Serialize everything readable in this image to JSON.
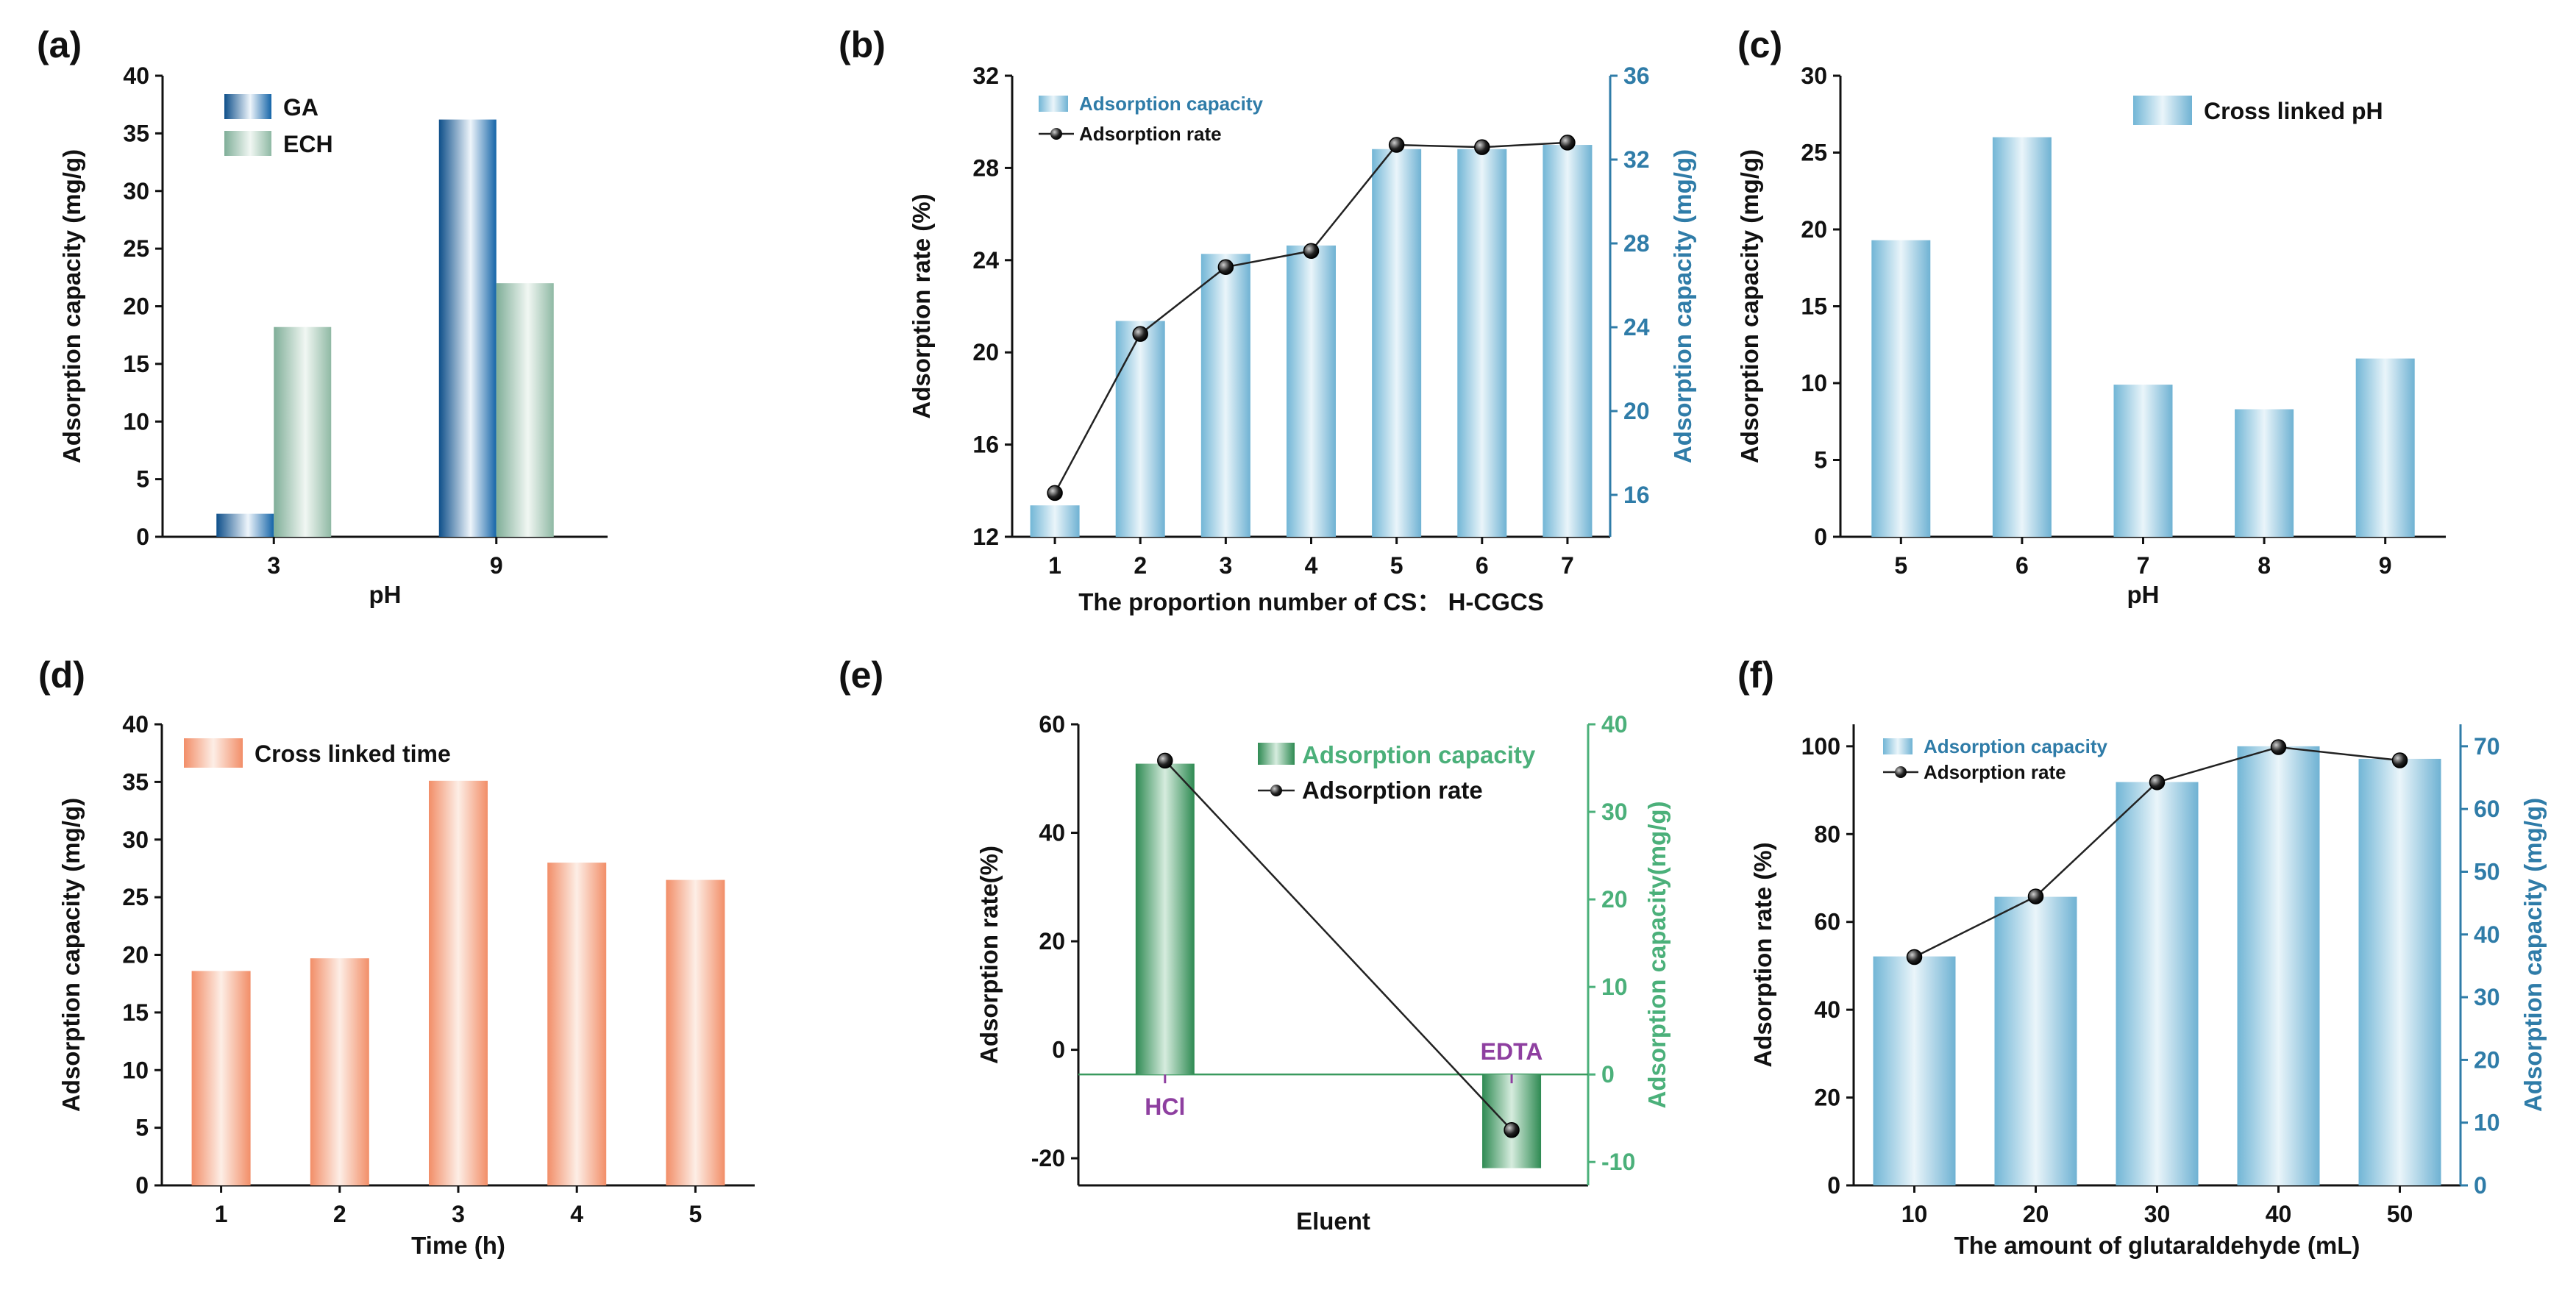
{
  "colors": {
    "ga_blue": "#1565a8",
    "ech_green": "#8fb9a4",
    "light_blue": "#7ec0dc",
    "orange": "#f49a78",
    "dark_green": "#3a9a5e",
    "purple": "#8e3fa0",
    "blue_label": "#2f7ca8",
    "green_label": "#4bb07a",
    "axis": "#111111"
  },
  "chart_data": [
    {
      "id": "a",
      "panel_label": "(a)",
      "type": "bar",
      "categories": [
        "3",
        "9"
      ],
      "series": [
        {
          "name": "GA",
          "values": [
            2,
            36.2
          ]
        },
        {
          "name": "ECH",
          "values": [
            18.2,
            22
          ]
        }
      ],
      "xlabel": "pH",
      "ylabel": "Adsorption capacity (mg/g)",
      "ylim": [
        0,
        40
      ],
      "yticks": [
        "0",
        "5",
        "10",
        "15",
        "20",
        "25",
        "30",
        "35",
        "40"
      ],
      "legend": "top-left"
    },
    {
      "id": "b",
      "panel_label": "(b)",
      "type": "bar+line",
      "categories": [
        "1",
        "2",
        "3",
        "4",
        "5",
        "6",
        "7"
      ],
      "bar_series": {
        "name": "Adsorption capacity",
        "axis": "right",
        "values": [
          15.5,
          24.3,
          27.5,
          27.9,
          32.5,
          32.5,
          32.7
        ]
      },
      "line_series": {
        "name": "Adsorption rate",
        "axis": "left",
        "values": [
          13.9,
          20.8,
          23.7,
          24.4,
          29.0,
          28.9,
          29.1
        ]
      },
      "xlabel": "The proportion number of CS： H-CGCS",
      "ylabel": "Adsorption rate (%)",
      "ylabel_right": "Adsorption capacity (mg/g)",
      "ylim": [
        12,
        32
      ],
      "ylim_right": [
        14,
        36
      ],
      "yticks": [
        "12",
        "16",
        "20",
        "24",
        "28",
        "32"
      ],
      "yticks_right": [
        "16",
        "20",
        "24",
        "28",
        "32",
        "36"
      ],
      "legend": "top-left"
    },
    {
      "id": "c",
      "panel_label": "(c)",
      "type": "bar",
      "categories": [
        "5",
        "6",
        "7",
        "8",
        "9"
      ],
      "series": [
        {
          "name": "Cross linked pH",
          "values": [
            19.3,
            26.0,
            9.9,
            8.3,
            11.6
          ]
        }
      ],
      "xlabel": "pH",
      "ylabel": "Adsorption capacity (mg/g)",
      "ylim": [
        0,
        30
      ],
      "yticks": [
        "0",
        "5",
        "10",
        "15",
        "20",
        "25",
        "30"
      ],
      "legend": "top-right"
    },
    {
      "id": "d",
      "panel_label": "(d)",
      "type": "bar",
      "categories": [
        "1",
        "2",
        "3",
        "4",
        "5"
      ],
      "series": [
        {
          "name": "Cross linked time",
          "values": [
            18.6,
            19.7,
            35.1,
            28.0,
            26.5
          ]
        }
      ],
      "xlabel": "Time (h)",
      "ylabel": "Adsorption capacity (mg/g)",
      "ylim": [
        0,
        40
      ],
      "yticks": [
        "0",
        "5",
        "10",
        "15",
        "20",
        "25",
        "30",
        "35",
        "40"
      ],
      "legend": "top-left"
    },
    {
      "id": "e",
      "panel_label": "(e)",
      "type": "bar+line",
      "categories": [
        "HCl",
        "EDTA"
      ],
      "bar_series": {
        "name": "Adsorption capacity",
        "axis": "right",
        "values": [
          35.5,
          -10.7
        ]
      },
      "line_series": {
        "name": "Adsorption rate",
        "axis": "left",
        "values": [
          53.3,
          -14.8
        ]
      },
      "xlabel": "Eluent",
      "ylabel": "Adsorption rate(%)",
      "ylabel_right": "Adsorption capacity(mg/g)",
      "ylim": [
        -25,
        60
      ],
      "ylim_right": [
        -12.67,
        40
      ],
      "yticks": [
        "-20",
        "0",
        "20",
        "40",
        "60"
      ],
      "yticks_right": [
        "-10",
        "0",
        "10",
        "20",
        "30",
        "40"
      ],
      "legend": "top-right"
    },
    {
      "id": "f",
      "panel_label": "(f)",
      "type": "bar+line",
      "categories": [
        "10",
        "20",
        "30",
        "40",
        "50"
      ],
      "bar_series": {
        "name": "Adsorption capacity",
        "axis": "right",
        "values": [
          36.5,
          46.0,
          64.3,
          70.0,
          68.0
        ]
      },
      "line_series": {
        "name": "Adsorption rate",
        "axis": "left",
        "values": [
          52.0,
          65.8,
          91.8,
          99.8,
          96.8
        ]
      },
      "xlabel": "The amount of glutaraldehyde (mL)",
      "ylabel": "Adsorption rate (%)",
      "ylabel_right": "Adsorption capacity (mg/g)",
      "ylim": [
        0,
        105
      ],
      "ylim_right": [
        0,
        73.5
      ],
      "yticks": [
        "0",
        "20",
        "40",
        "60",
        "80",
        "100"
      ],
      "yticks_right": [
        "0",
        "10",
        "20",
        "30",
        "40",
        "50",
        "60",
        "70"
      ],
      "legend": "top-left"
    }
  ]
}
